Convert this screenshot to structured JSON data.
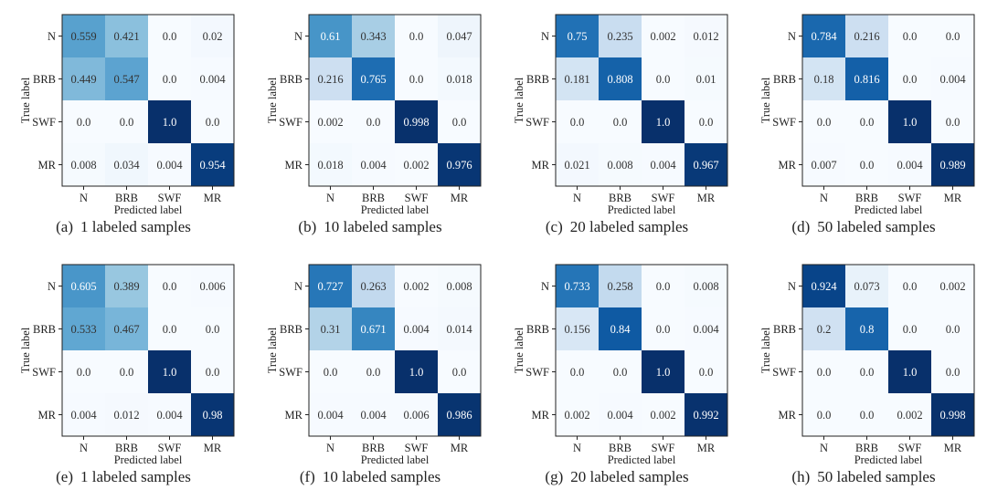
{
  "chart_data": [
    {
      "type": "heatmap",
      "caption_label": "(a)",
      "caption_text": "1 labeled samples",
      "xlabel": "Predicted label",
      "ylabel": "True label",
      "x_categories": [
        "N",
        "BRB",
        "SWF",
        "MR"
      ],
      "y_categories": [
        "N",
        "BRB",
        "SWF",
        "MR"
      ],
      "values": [
        [
          0.559,
          0.421,
          0.0,
          0.02
        ],
        [
          0.449,
          0.547,
          0.0,
          0.004
        ],
        [
          0.0,
          0.0,
          1.0,
          0.0
        ],
        [
          0.008,
          0.034,
          0.004,
          0.954
        ]
      ],
      "value_labels": [
        [
          "0.559",
          "0.421",
          "0.0",
          "0.02"
        ],
        [
          "0.449",
          "0.547",
          "0.0",
          "0.004"
        ],
        [
          "0.0",
          "0.0",
          "1.0",
          "0.0"
        ],
        [
          "0.008",
          "0.034",
          "0.004",
          "0.954"
        ]
      ],
      "colormap": "Blues",
      "vlim": [
        0,
        1
      ]
    },
    {
      "type": "heatmap",
      "caption_label": "(b)",
      "caption_text": "10 labeled samples",
      "xlabel": "Predicted label",
      "ylabel": "True label",
      "x_categories": [
        "N",
        "BRB",
        "SWF",
        "MR"
      ],
      "y_categories": [
        "N",
        "BRB",
        "SWF",
        "MR"
      ],
      "values": [
        [
          0.61,
          0.343,
          0.0,
          0.047
        ],
        [
          0.216,
          0.765,
          0.0,
          0.018
        ],
        [
          0.002,
          0.0,
          0.998,
          0.0
        ],
        [
          0.018,
          0.004,
          0.002,
          0.976
        ]
      ],
      "value_labels": [
        [
          "0.61",
          "0.343",
          "0.0",
          "0.047"
        ],
        [
          "0.216",
          "0.765",
          "0.0",
          "0.018"
        ],
        [
          "0.002",
          "0.0",
          "0.998",
          "0.0"
        ],
        [
          "0.018",
          "0.004",
          "0.002",
          "0.976"
        ]
      ],
      "colormap": "Blues",
      "vlim": [
        0,
        1
      ]
    },
    {
      "type": "heatmap",
      "caption_label": "(c)",
      "caption_text": "20 labeled samples",
      "xlabel": "Predicted label",
      "ylabel": "True label",
      "x_categories": [
        "N",
        "BRB",
        "SWF",
        "MR"
      ],
      "y_categories": [
        "N",
        "BRB",
        "SWF",
        "MR"
      ],
      "values": [
        [
          0.75,
          0.235,
          0.002,
          0.012
        ],
        [
          0.181,
          0.808,
          0.0,
          0.01
        ],
        [
          0.0,
          0.0,
          1.0,
          0.0
        ],
        [
          0.021,
          0.008,
          0.004,
          0.967
        ]
      ],
      "value_labels": [
        [
          "0.75",
          "0.235",
          "0.002",
          "0.012"
        ],
        [
          "0.181",
          "0.808",
          "0.0",
          "0.01"
        ],
        [
          "0.0",
          "0.0",
          "1.0",
          "0.0"
        ],
        [
          "0.021",
          "0.008",
          "0.004",
          "0.967"
        ]
      ],
      "colormap": "Blues",
      "vlim": [
        0,
        1
      ]
    },
    {
      "type": "heatmap",
      "caption_label": "(d)",
      "caption_text": "50 labeled samples",
      "xlabel": "Predicted label",
      "ylabel": "True label",
      "x_categories": [
        "N",
        "BRB",
        "SWF",
        "MR"
      ],
      "y_categories": [
        "N",
        "BRB",
        "SWF",
        "MR"
      ],
      "values": [
        [
          0.784,
          0.216,
          0.0,
          0.0
        ],
        [
          0.18,
          0.816,
          0.0,
          0.004
        ],
        [
          0.0,
          0.0,
          1.0,
          0.0
        ],
        [
          0.007,
          0.0,
          0.004,
          0.989
        ]
      ],
      "value_labels": [
        [
          "0.784",
          "0.216",
          "0.0",
          "0.0"
        ],
        [
          "0.18",
          "0.816",
          "0.0",
          "0.004"
        ],
        [
          "0.0",
          "0.0",
          "1.0",
          "0.0"
        ],
        [
          "0.007",
          "0.0",
          "0.004",
          "0.989"
        ]
      ],
      "colormap": "Blues",
      "vlim": [
        0,
        1
      ]
    },
    {
      "type": "heatmap",
      "caption_label": "(e)",
      "caption_text": "1 labeled samples",
      "xlabel": "Predicted label",
      "ylabel": "True label",
      "x_categories": [
        "N",
        "BRB",
        "SWF",
        "MR"
      ],
      "y_categories": [
        "N",
        "BRB",
        "SWF",
        "MR"
      ],
      "values": [
        [
          0.605,
          0.389,
          0.0,
          0.006
        ],
        [
          0.533,
          0.467,
          0.0,
          0.0
        ],
        [
          0.0,
          0.0,
          1.0,
          0.0
        ],
        [
          0.004,
          0.012,
          0.004,
          0.98
        ]
      ],
      "value_labels": [
        [
          "0.605",
          "0.389",
          "0.0",
          "0.006"
        ],
        [
          "0.533",
          "0.467",
          "0.0",
          "0.0"
        ],
        [
          "0.0",
          "0.0",
          "1.0",
          "0.0"
        ],
        [
          "0.004",
          "0.012",
          "0.004",
          "0.98"
        ]
      ],
      "colormap": "Blues",
      "vlim": [
        0,
        1
      ]
    },
    {
      "type": "heatmap",
      "caption_label": "(f)",
      "caption_text": "10 labeled samples",
      "xlabel": "Predicted label",
      "ylabel": "True label",
      "x_categories": [
        "N",
        "BRB",
        "SWF",
        "MR"
      ],
      "y_categories": [
        "N",
        "BRB",
        "SWF",
        "MR"
      ],
      "values": [
        [
          0.727,
          0.263,
          0.002,
          0.008
        ],
        [
          0.31,
          0.671,
          0.004,
          0.014
        ],
        [
          0.0,
          0.0,
          1.0,
          0.0
        ],
        [
          0.004,
          0.004,
          0.006,
          0.986
        ]
      ],
      "value_labels": [
        [
          "0.727",
          "0.263",
          "0.002",
          "0.008"
        ],
        [
          "0.31",
          "0.671",
          "0.004",
          "0.014"
        ],
        [
          "0.0",
          "0.0",
          "1.0",
          "0.0"
        ],
        [
          "0.004",
          "0.004",
          "0.006",
          "0.986"
        ]
      ],
      "colormap": "Blues",
      "vlim": [
        0,
        1
      ]
    },
    {
      "type": "heatmap",
      "caption_label": "(g)",
      "caption_text": "20 labeled samples",
      "xlabel": "Predicted label",
      "ylabel": "True label",
      "x_categories": [
        "N",
        "BRB",
        "SWF",
        "MR"
      ],
      "y_categories": [
        "N",
        "BRB",
        "SWF",
        "MR"
      ],
      "values": [
        [
          0.733,
          0.258,
          0.0,
          0.008
        ],
        [
          0.156,
          0.84,
          0.0,
          0.004
        ],
        [
          0.0,
          0.0,
          1.0,
          0.0
        ],
        [
          0.002,
          0.004,
          0.002,
          0.992
        ]
      ],
      "value_labels": [
        [
          "0.733",
          "0.258",
          "0.0",
          "0.008"
        ],
        [
          "0.156",
          "0.84",
          "0.0",
          "0.004"
        ],
        [
          "0.0",
          "0.0",
          "1.0",
          "0.0"
        ],
        [
          "0.002",
          "0.004",
          "0.002",
          "0.992"
        ]
      ],
      "colormap": "Blues",
      "vlim": [
        0,
        1
      ]
    },
    {
      "type": "heatmap",
      "caption_label": "(h)",
      "caption_text": "50 labeled samples",
      "xlabel": "Predicted label",
      "ylabel": "True label",
      "x_categories": [
        "N",
        "BRB",
        "SWF",
        "MR"
      ],
      "y_categories": [
        "N",
        "BRB",
        "SWF",
        "MR"
      ],
      "values": [
        [
          0.924,
          0.073,
          0.0,
          0.002
        ],
        [
          0.2,
          0.8,
          0.0,
          0.0
        ],
        [
          0.0,
          0.0,
          1.0,
          0.0
        ],
        [
          0.0,
          0.0,
          0.002,
          0.998
        ]
      ],
      "value_labels": [
        [
          "0.924",
          "0.073",
          "0.0",
          "0.002"
        ],
        [
          "0.2",
          "0.8",
          "0.0",
          "0.0"
        ],
        [
          "0.0",
          "0.0",
          "1.0",
          "0.0"
        ],
        [
          "0.0",
          "0.0",
          "0.002",
          "0.998"
        ]
      ],
      "colormap": "Blues",
      "vlim": [
        0,
        1
      ]
    }
  ]
}
